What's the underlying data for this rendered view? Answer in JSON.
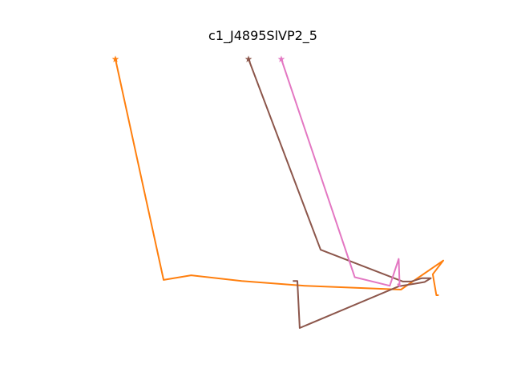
{
  "chart_data": {
    "type": "line",
    "title": "c1_J4895SlVP2_5",
    "xlabel": "",
    "ylabel": "",
    "axes_visible": false,
    "grid": false,
    "legend": "none",
    "start_marker": "star",
    "xlim": [
      0,
      100
    ],
    "ylim": [
      0,
      100
    ],
    "series": [
      {
        "color": "#ff7f0e",
        "points": [
          [
            0.0,
            100.0
          ],
          [
            14.7,
            17.9
          ],
          [
            23.1,
            19.6
          ],
          [
            38.5,
            17.5
          ],
          [
            57.8,
            15.7
          ],
          [
            87.1,
            14.3
          ],
          [
            100.0,
            25.1
          ],
          [
            96.8,
            20.0
          ],
          [
            97.9,
            12.2
          ],
          [
            98.6,
            12.2
          ]
        ]
      },
      {
        "color": "#8c564b",
        "points": [
          [
            40.6,
            100.0
          ],
          [
            62.6,
            29.1
          ],
          [
            87.7,
            17.3
          ],
          [
            90.2,
            17.3
          ],
          [
            93.4,
            18.5
          ],
          [
            96.2,
            18.5
          ],
          [
            94.3,
            17.1
          ],
          [
            91.3,
            16.5
          ],
          [
            86.4,
            15.5
          ],
          [
            56.2,
            0.0
          ],
          [
            55.5,
            17.5
          ],
          [
            54.1,
            17.5
          ]
        ]
      },
      {
        "color": "#e377c2",
        "points": [
          [
            50.6,
            100.0
          ],
          [
            73.0,
            18.9
          ],
          [
            83.7,
            15.7
          ],
          [
            86.4,
            25.7
          ],
          [
            86.7,
            15.5
          ],
          [
            86.1,
            16.5
          ]
        ]
      }
    ]
  }
}
